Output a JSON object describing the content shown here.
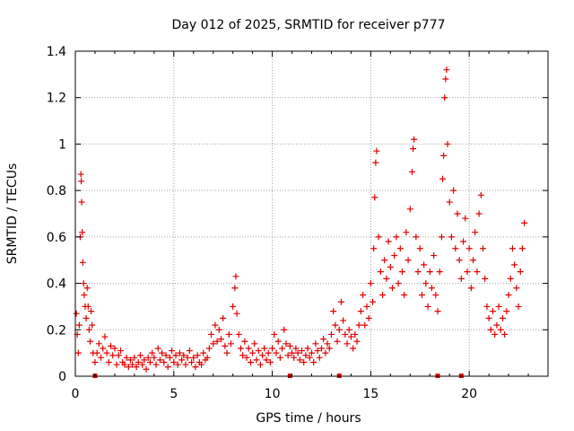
{
  "chart_data": {
    "type": "scatter",
    "title": "Day 012 of 2025, SRMTID for receiver p777",
    "xlabel": "GPS time / hours",
    "ylabel": "SRMTID / TECUs",
    "xlim": [
      0,
      24
    ],
    "ylim": [
      0,
      1.4
    ],
    "xticks": [
      0,
      5,
      10,
      15,
      20
    ],
    "yticks": [
      0,
      0.2,
      0.4,
      0.6,
      0.8,
      1,
      1.2,
      1.4
    ],
    "xtick_labels": [
      "0",
      "5",
      "10",
      "15",
      "20"
    ],
    "ytick_labels": [
      "0",
      "0.2",
      "0.4",
      "0.6",
      "0.8",
      "1",
      "1.2",
      "1.4"
    ],
    "grid": true,
    "marker": "+",
    "colors": {
      "series": "#e00000",
      "grid": "#a0a0a0",
      "axis": "#000000"
    },
    "series": [
      {
        "name": "SRMTID",
        "points": [
          [
            0.05,
            0.27
          ],
          [
            0.1,
            0.18
          ],
          [
            0.15,
            0.1
          ],
          [
            0.2,
            0.22
          ],
          [
            0.25,
            0.6
          ],
          [
            0.28,
            0.87
          ],
          [
            0.3,
            0.84
          ],
          [
            0.32,
            0.75
          ],
          [
            0.35,
            0.62
          ],
          [
            0.38,
            0.49
          ],
          [
            0.42,
            0.4
          ],
          [
            0.45,
            0.35
          ],
          [
            0.5,
            0.3
          ],
          [
            0.55,
            0.25
          ],
          [
            0.6,
            0.38
          ],
          [
            0.65,
            0.3
          ],
          [
            0.7,
            0.2
          ],
          [
            0.75,
            0.15
          ],
          [
            0.8,
            0.28
          ],
          [
            0.85,
            0.22
          ],
          [
            0.9,
            0.1
          ],
          [
            1.0,
            0.06
          ],
          [
            1.1,
            0.1
          ],
          [
            1.2,
            0.14
          ],
          [
            1.3,
            0.08
          ],
          [
            1.4,
            0.12
          ],
          [
            1.5,
            0.17
          ],
          [
            1.6,
            0.1
          ],
          [
            1.7,
            0.06
          ],
          [
            1.8,
            0.13
          ],
          [
            1.9,
            0.09
          ],
          [
            2.0,
            0.12
          ],
          [
            2.1,
            0.05
          ],
          [
            2.2,
            0.09
          ],
          [
            2.3,
            0.11
          ],
          [
            2.4,
            0.06
          ],
          [
            2.5,
            0.05
          ],
          [
            2.6,
            0.08
          ],
          [
            2.7,
            0.04
          ],
          [
            2.8,
            0.07
          ],
          [
            2.9,
            0.05
          ],
          [
            3.0,
            0.08
          ],
          [
            3.1,
            0.04
          ],
          [
            3.2,
            0.06
          ],
          [
            3.3,
            0.09
          ],
          [
            3.4,
            0.05
          ],
          [
            3.5,
            0.07
          ],
          [
            3.6,
            0.03
          ],
          [
            3.7,
            0.08
          ],
          [
            3.8,
            0.06
          ],
          [
            3.9,
            0.1
          ],
          [
            4.0,
            0.08
          ],
          [
            4.1,
            0.05
          ],
          [
            4.2,
            0.12
          ],
          [
            4.3,
            0.07
          ],
          [
            4.4,
            0.1
          ],
          [
            4.5,
            0.06
          ],
          [
            4.6,
            0.09
          ],
          [
            4.7,
            0.04
          ],
          [
            4.8,
            0.08
          ],
          [
            4.9,
            0.11
          ],
          [
            5.0,
            0.06
          ],
          [
            5.1,
            0.09
          ],
          [
            5.2,
            0.05
          ],
          [
            5.3,
            0.1
          ],
          [
            5.4,
            0.07
          ],
          [
            5.5,
            0.09
          ],
          [
            5.6,
            0.05
          ],
          [
            5.7,
            0.08
          ],
          [
            5.8,
            0.11
          ],
          [
            5.9,
            0.06
          ],
          [
            6.0,
            0.08
          ],
          [
            6.1,
            0.04
          ],
          [
            6.2,
            0.09
          ],
          [
            6.3,
            0.06
          ],
          [
            6.4,
            0.05
          ],
          [
            6.5,
            0.1
          ],
          [
            6.6,
            0.07
          ],
          [
            6.7,
            0.08
          ],
          [
            6.8,
            0.12
          ],
          [
            6.9,
            0.18
          ],
          [
            7.0,
            0.14
          ],
          [
            7.1,
            0.22
          ],
          [
            7.2,
            0.15
          ],
          [
            7.3,
            0.2
          ],
          [
            7.4,
            0.16
          ],
          [
            7.5,
            0.25
          ],
          [
            7.6,
            0.13
          ],
          [
            7.7,
            0.1
          ],
          [
            7.8,
            0.18
          ],
          [
            7.9,
            0.14
          ],
          [
            8.0,
            0.3
          ],
          [
            8.1,
            0.38
          ],
          [
            8.15,
            0.43
          ],
          [
            8.2,
            0.27
          ],
          [
            8.3,
            0.18
          ],
          [
            8.4,
            0.12
          ],
          [
            8.5,
            0.09
          ],
          [
            8.6,
            0.15
          ],
          [
            8.7,
            0.08
          ],
          [
            8.8,
            0.12
          ],
          [
            8.9,
            0.06
          ],
          [
            9.0,
            0.1
          ],
          [
            9.1,
            0.14
          ],
          [
            9.2,
            0.07
          ],
          [
            9.3,
            0.11
          ],
          [
            9.4,
            0.05
          ],
          [
            9.5,
            0.09
          ],
          [
            9.6,
            0.12
          ],
          [
            9.7,
            0.07
          ],
          [
            9.8,
            0.1
          ],
          [
            9.9,
            0.06
          ],
          [
            10.0,
            0.12
          ],
          [
            10.1,
            0.18
          ],
          [
            10.2,
            0.1
          ],
          [
            10.3,
            0.15
          ],
          [
            10.4,
            0.08
          ],
          [
            10.5,
            0.12
          ],
          [
            10.6,
            0.2
          ],
          [
            10.7,
            0.14
          ],
          [
            10.8,
            0.09
          ],
          [
            10.9,
            0.13
          ],
          [
            11.0,
            0.1
          ],
          [
            11.1,
            0.08
          ],
          [
            11.2,
            0.12
          ],
          [
            11.3,
            0.1
          ],
          [
            11.4,
            0.07
          ],
          [
            11.5,
            0.11
          ],
          [
            11.6,
            0.06
          ],
          [
            11.7,
            0.09
          ],
          [
            11.8,
            0.12
          ],
          [
            11.9,
            0.08
          ],
          [
            12.0,
            0.1
          ],
          [
            12.1,
            0.06
          ],
          [
            12.2,
            0.14
          ],
          [
            12.3,
            0.11
          ],
          [
            12.4,
            0.08
          ],
          [
            12.5,
            0.12
          ],
          [
            12.6,
            0.16
          ],
          [
            12.7,
            0.1
          ],
          [
            12.8,
            0.14
          ],
          [
            12.9,
            0.12
          ],
          [
            13.0,
            0.18
          ],
          [
            13.1,
            0.28
          ],
          [
            13.2,
            0.22
          ],
          [
            13.3,
            0.15
          ],
          [
            13.4,
            0.2
          ],
          [
            13.5,
            0.32
          ],
          [
            13.6,
            0.24
          ],
          [
            13.7,
            0.18
          ],
          [
            13.8,
            0.14
          ],
          [
            13.9,
            0.2
          ],
          [
            14.0,
            0.17
          ],
          [
            14.1,
            0.12
          ],
          [
            14.2,
            0.18
          ],
          [
            14.3,
            0.15
          ],
          [
            14.4,
            0.22
          ],
          [
            14.5,
            0.28
          ],
          [
            14.6,
            0.35
          ],
          [
            14.7,
            0.22
          ],
          [
            14.8,
            0.3
          ],
          [
            14.9,
            0.25
          ],
          [
            15.0,
            0.4
          ],
          [
            15.1,
            0.32
          ],
          [
            15.15,
            0.55
          ],
          [
            15.2,
            0.77
          ],
          [
            15.25,
            0.92
          ],
          [
            15.3,
            0.97
          ],
          [
            15.4,
            0.6
          ],
          [
            15.5,
            0.45
          ],
          [
            15.6,
            0.35
          ],
          [
            15.7,
            0.5
          ],
          [
            15.8,
            0.42
          ],
          [
            15.9,
            0.58
          ],
          [
            16.0,
            0.47
          ],
          [
            16.1,
            0.38
          ],
          [
            16.2,
            0.52
          ],
          [
            16.3,
            0.6
          ],
          [
            16.4,
            0.4
          ],
          [
            16.5,
            0.55
          ],
          [
            16.6,
            0.45
          ],
          [
            16.7,
            0.35
          ],
          [
            16.8,
            0.62
          ],
          [
            16.9,
            0.5
          ],
          [
            17.0,
            0.72
          ],
          [
            17.1,
            0.88
          ],
          [
            17.15,
            0.98
          ],
          [
            17.2,
            1.02
          ],
          [
            17.3,
            0.6
          ],
          [
            17.4,
            0.45
          ],
          [
            17.5,
            0.55
          ],
          [
            17.6,
            0.35
          ],
          [
            17.7,
            0.48
          ],
          [
            17.8,
            0.4
          ],
          [
            17.9,
            0.3
          ],
          [
            18.0,
            0.45
          ],
          [
            18.1,
            0.38
          ],
          [
            18.2,
            0.52
          ],
          [
            18.3,
            0.35
          ],
          [
            18.4,
            0.28
          ],
          [
            18.5,
            0.45
          ],
          [
            18.6,
            0.6
          ],
          [
            18.65,
            0.85
          ],
          [
            18.7,
            0.95
          ],
          [
            18.75,
            1.2
          ],
          [
            18.8,
            1.28
          ],
          [
            18.85,
            1.32
          ],
          [
            18.9,
            1.0
          ],
          [
            19.0,
            0.75
          ],
          [
            19.1,
            0.6
          ],
          [
            19.2,
            0.8
          ],
          [
            19.3,
            0.55
          ],
          [
            19.4,
            0.7
          ],
          [
            19.5,
            0.5
          ],
          [
            19.6,
            0.42
          ],
          [
            19.7,
            0.58
          ],
          [
            19.8,
            0.68
          ],
          [
            19.9,
            0.45
          ],
          [
            20.0,
            0.55
          ],
          [
            20.1,
            0.38
          ],
          [
            20.2,
            0.5
          ],
          [
            20.3,
            0.62
          ],
          [
            20.4,
            0.45
          ],
          [
            20.5,
            0.7
          ],
          [
            20.6,
            0.78
          ],
          [
            20.7,
            0.55
          ],
          [
            20.8,
            0.42
          ],
          [
            20.9,
            0.3
          ],
          [
            21.0,
            0.25
          ],
          [
            21.1,
            0.2
          ],
          [
            21.2,
            0.28
          ],
          [
            21.3,
            0.18
          ],
          [
            21.4,
            0.22
          ],
          [
            21.5,
            0.3
          ],
          [
            21.6,
            0.2
          ],
          [
            21.7,
            0.25
          ],
          [
            21.8,
            0.18
          ],
          [
            21.9,
            0.28
          ],
          [
            22.0,
            0.35
          ],
          [
            22.1,
            0.42
          ],
          [
            22.2,
            0.55
          ],
          [
            22.3,
            0.48
          ],
          [
            22.4,
            0.38
          ],
          [
            22.5,
            0.3
          ],
          [
            22.6,
            0.45
          ],
          [
            22.7,
            0.55
          ],
          [
            22.8,
            0.66
          ]
        ]
      }
    ],
    "gap_markers_x": [
      1.0,
      10.9,
      13.4,
      18.4,
      19.6
    ]
  }
}
